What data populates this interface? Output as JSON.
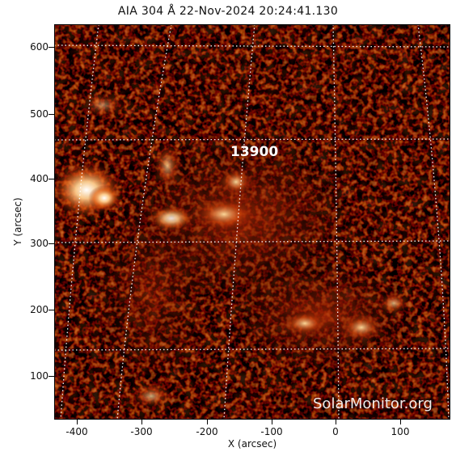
{
  "title": "AIA 304 Å 22-Nov-2024 20:24:41.130",
  "image": {
    "description_icon": "solar-chromosphere-image",
    "palette": [
      "#060000",
      "#3a0500",
      "#8a1a00",
      "#d04a10",
      "#ffb060",
      "#ffffff"
    ],
    "grid_color": "#ffffff",
    "noaa_label": "13900",
    "watermark": "SolarMonitor.org"
  },
  "axes": {
    "x_label": "X (arcsec)",
    "y_label": "Y (arcsec)",
    "x_ticks": [
      "-400",
      "-300",
      "-200",
      "-100",
      "0",
      "100"
    ],
    "y_ticks": [
      "600",
      "500",
      "400",
      "300",
      "200",
      "100"
    ]
  }
}
